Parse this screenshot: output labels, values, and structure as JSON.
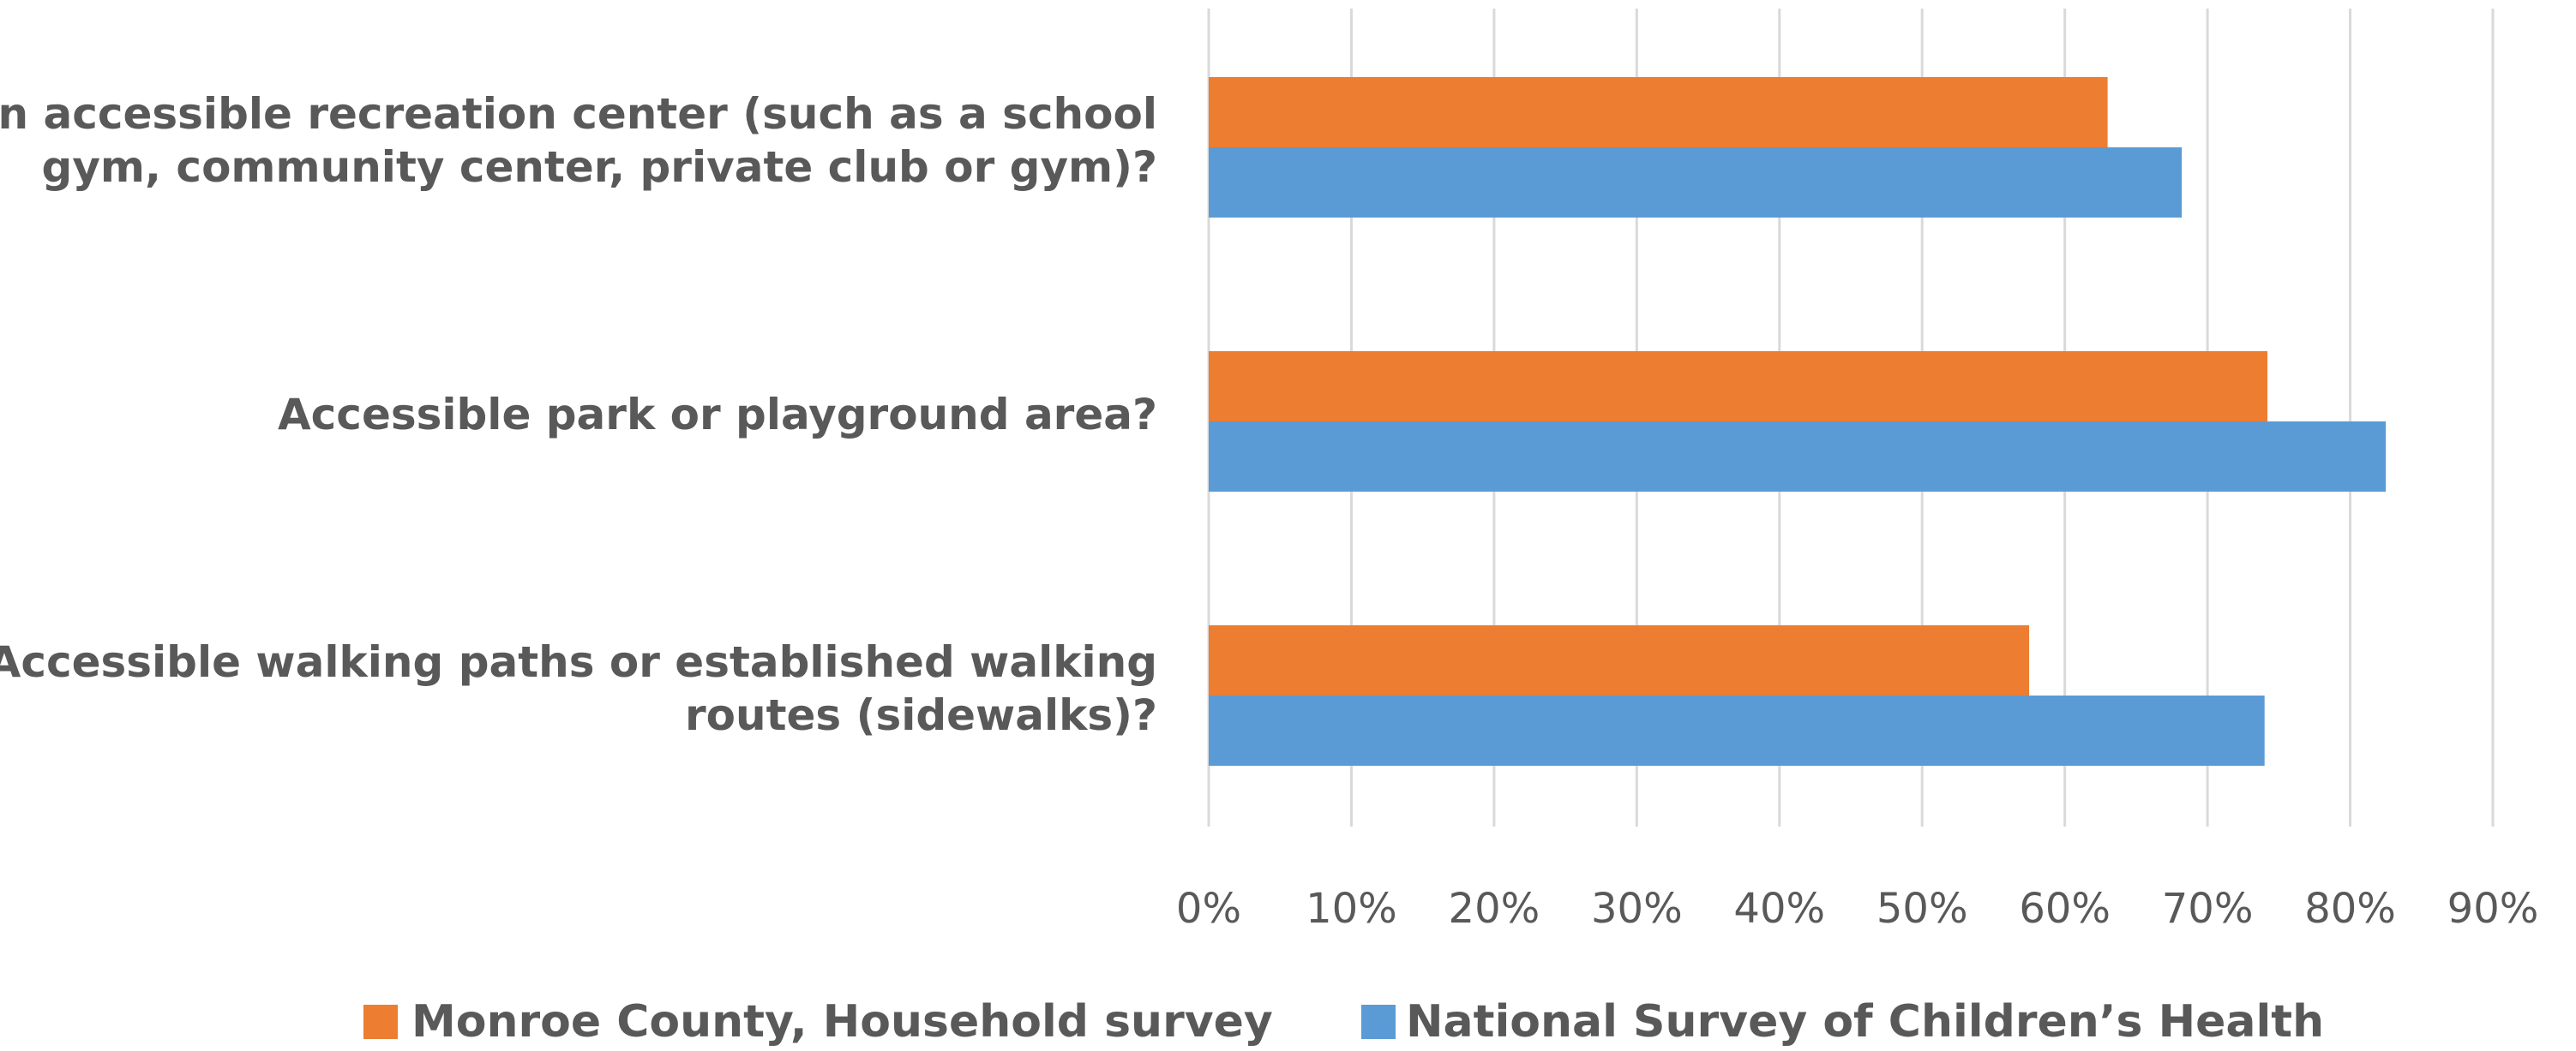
{
  "chart_data": {
    "type": "bar",
    "orientation": "horizontal",
    "categories": [
      [
        "An accessible recreation center (such as a school",
        "gym, community center, private club or gym)?"
      ],
      [
        "Accessible park or playground area?"
      ],
      [
        "Accessible walking paths or established walking",
        "routes (sidewalks)?"
      ]
    ],
    "series": [
      {
        "name": "Monroe County, Household survey",
        "color": "#ed7d31",
        "values": [
          63,
          74.2,
          57.5
        ]
      },
      {
        "name": "National Survey of Children’s Health",
        "color": "#5b9bd5",
        "values": [
          68.2,
          82.5,
          74
        ]
      }
    ],
    "xlim": [
      0,
      90
    ],
    "xticks": [
      "0%",
      "10%",
      "20%",
      "30%",
      "40%",
      "50%",
      "60%",
      "70%",
      "80%",
      "90%"
    ],
    "grid": true,
    "legend": "bottom"
  }
}
